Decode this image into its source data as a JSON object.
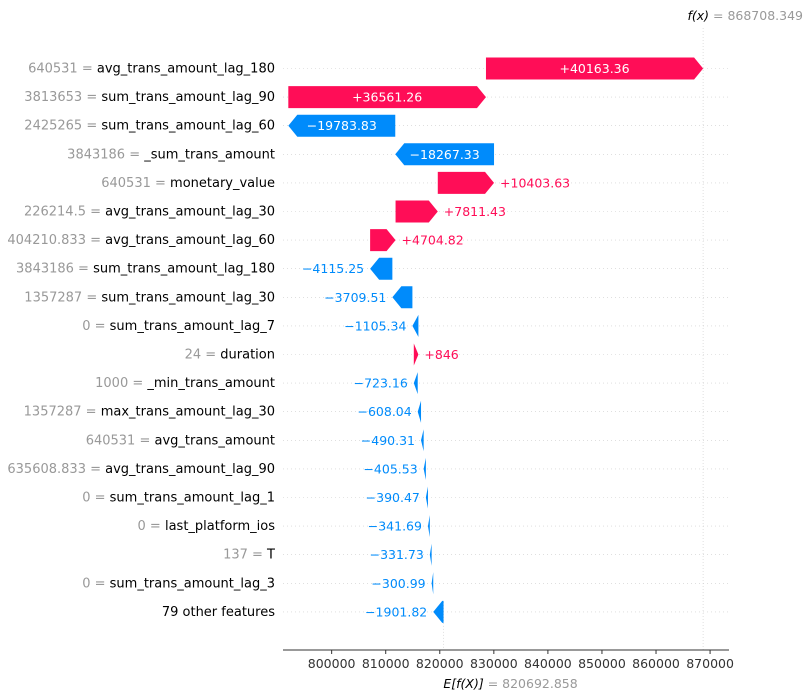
{
  "chart_data": {
    "type": "waterfall",
    "base_value": 820692.858,
    "final_value": 868708.349,
    "fx_label": "f(x)",
    "fx_value_text": "868708.349",
    "efx_label": "E[f(X)]",
    "efx_value_text": "820692.858",
    "xlim": [
      791000,
      873500
    ],
    "xticks": [
      800000,
      810000,
      820000,
      830000,
      840000,
      850000,
      860000,
      870000
    ],
    "features": [
      {
        "value": "640531",
        "name": "avg_trans_amount_lag_180",
        "contribution": 40163.36,
        "label": "+40163.36"
      },
      {
        "value": "3813653",
        "name": "sum_trans_amount_lag_90",
        "contribution": 36561.26,
        "label": "+36561.26"
      },
      {
        "value": "2425265",
        "name": "sum_trans_amount_lag_60",
        "contribution": -19783.83,
        "label": "−19783.83"
      },
      {
        "value": "3843186",
        "name": "_sum_trans_amount",
        "contribution": -18267.33,
        "label": "−18267.33"
      },
      {
        "value": "640531",
        "name": "monetary_value",
        "contribution": 10403.63,
        "label": "+10403.63"
      },
      {
        "value": "226214.5",
        "name": "avg_trans_amount_lag_30",
        "contribution": 7811.43,
        "label": "+7811.43"
      },
      {
        "value": "404210.833",
        "name": "avg_trans_amount_lag_60",
        "contribution": 4704.82,
        "label": "+4704.82"
      },
      {
        "value": "3843186",
        "name": "sum_trans_amount_lag_180",
        "contribution": -4115.25,
        "label": "−4115.25"
      },
      {
        "value": "1357287",
        "name": "sum_trans_amount_lag_30",
        "contribution": -3709.51,
        "label": "−3709.51"
      },
      {
        "value": "0",
        "name": "sum_trans_amount_lag_7",
        "contribution": -1105.34,
        "label": "−1105.34"
      },
      {
        "value": "24",
        "name": "duration",
        "contribution": 846,
        "label": "+846"
      },
      {
        "value": "1000",
        "name": "_min_trans_amount",
        "contribution": -723.16,
        "label": "−723.16"
      },
      {
        "value": "1357287",
        "name": "max_trans_amount_lag_30",
        "contribution": -608.04,
        "label": "−608.04"
      },
      {
        "value": "640531",
        "name": "avg_trans_amount",
        "contribution": -490.31,
        "label": "−490.31"
      },
      {
        "value": "635608.833",
        "name": "avg_trans_amount_lag_90",
        "contribution": -405.53,
        "label": "−405.53"
      },
      {
        "value": "0",
        "name": "sum_trans_amount_lag_1",
        "contribution": -390.47,
        "label": "−390.47"
      },
      {
        "value": "0",
        "name": "last_platform_ios",
        "contribution": -341.69,
        "label": "−341.69"
      },
      {
        "value": "137",
        "name": "T",
        "contribution": -331.73,
        "label": "−331.73"
      },
      {
        "value": "0",
        "name": "sum_trans_amount_lag_3",
        "contribution": -300.99,
        "label": "−300.99"
      },
      {
        "value": "",
        "name": "79 other features",
        "contribution": -1901.82,
        "label": "−1901.82"
      }
    ],
    "colors": {
      "positive": "#ff0d57",
      "negative": "#008bfb",
      "axis": "#333333",
      "muted": "#999999",
      "grid": "#cccccc"
    }
  }
}
